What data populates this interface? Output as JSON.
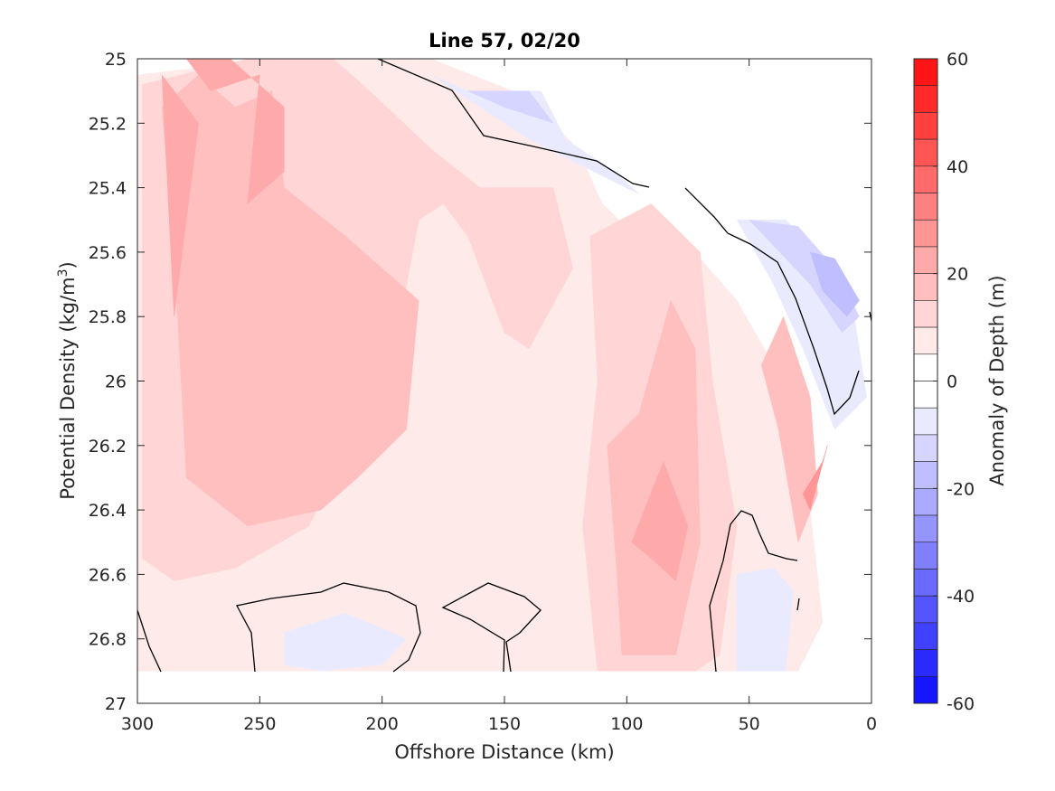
{
  "chart_data": {
    "type": "contour",
    "title": "Line 57, 02/20",
    "xlabel": "Offshore Distance (km)",
    "ylabel_main": "Potential Density (kg/m",
    "ylabel_sup": "3",
    "ylabel_close": ")",
    "colorbar_label": "Anomaly of Depth (m)",
    "xlim": [
      300,
      0
    ],
    "ylim": [
      27,
      25
    ],
    "x_ticks": [
      300,
      250,
      200,
      150,
      100,
      50,
      0
    ],
    "y_ticks": [
      25,
      25.2,
      25.4,
      25.6,
      25.8,
      26,
      26.2,
      26.4,
      26.6,
      26.8,
      27
    ],
    "colorbar_ticks": [
      60,
      40,
      20,
      0,
      -20,
      -40,
      -60
    ],
    "colorbar_range": [
      -60,
      60
    ],
    "colorbar_levels": 24,
    "grid": false,
    "colors": {
      "red_max": "#ff0000",
      "blue_max": "#0000ff",
      "zero": "#ffffff",
      "contour_line": "#000000"
    },
    "regions": [
      {
        "level": 5,
        "points": [
          [
            300,
            25.05
          ],
          [
            240,
            25.0
          ],
          [
            180,
            25.0
          ],
          [
            140,
            25.12
          ],
          [
            120,
            25.28
          ],
          [
            110,
            25.45
          ],
          [
            92,
            25.58
          ],
          [
            70,
            25.62
          ],
          [
            55,
            25.75
          ],
          [
            40,
            25.95
          ],
          [
            32,
            26.05
          ],
          [
            25,
            26.4
          ],
          [
            20,
            26.75
          ],
          [
            30,
            26.9
          ],
          [
            300,
            26.9
          ]
        ]
      },
      {
        "level": 10,
        "points": [
          [
            298,
            25.08
          ],
          [
            255,
            25.0
          ],
          [
            220,
            25.0
          ],
          [
            205,
            25.1
          ],
          [
            180,
            25.28
          ],
          [
            160,
            25.4
          ],
          [
            130,
            25.4
          ],
          [
            122,
            25.65
          ],
          [
            140,
            25.9
          ],
          [
            150,
            25.85
          ],
          [
            165,
            25.55
          ],
          [
            175,
            25.45
          ],
          [
            185,
            25.5
          ],
          [
            190,
            25.7
          ],
          [
            195,
            26.05
          ],
          [
            210,
            26.15
          ],
          [
            230,
            26.45
          ],
          [
            260,
            26.58
          ],
          [
            285,
            26.62
          ],
          [
            298,
            26.55
          ]
        ]
      },
      {
        "level": 10,
        "points": [
          [
            115,
            25.55
          ],
          [
            90,
            25.45
          ],
          [
            70,
            25.6
          ],
          [
            65,
            26.0
          ],
          [
            55,
            26.45
          ],
          [
            62,
            26.85
          ],
          [
            72,
            26.9
          ],
          [
            112,
            26.9
          ],
          [
            118,
            26.45
          ],
          [
            112,
            26.0
          ]
        ]
      },
      {
        "level": 15,
        "points": [
          [
            290,
            25.15
          ],
          [
            275,
            25.05
          ],
          [
            260,
            25.15
          ],
          [
            245,
            25.1
          ],
          [
            240,
            25.4
          ],
          [
            215,
            25.55
          ],
          [
            185,
            25.75
          ],
          [
            190,
            26.15
          ],
          [
            210,
            26.3
          ],
          [
            225,
            26.4
          ],
          [
            255,
            26.45
          ],
          [
            280,
            26.3
          ],
          [
            285,
            25.6
          ]
        ]
      },
      {
        "level": 15,
        "points": [
          [
            108,
            26.2
          ],
          [
            95,
            26.1
          ],
          [
            82,
            25.75
          ],
          [
            72,
            25.9
          ],
          [
            70,
            26.5
          ],
          [
            80,
            26.85
          ],
          [
            102,
            26.85
          ],
          [
            104,
            26.6
          ]
        ]
      },
      {
        "level": 15,
        "points": [
          [
            45,
            25.95
          ],
          [
            36,
            25.8
          ],
          [
            25,
            26.05
          ],
          [
            22,
            26.35
          ],
          [
            30,
            26.5
          ],
          [
            38,
            26.15
          ]
        ]
      },
      {
        "level": 20,
        "points": [
          [
            292,
            25.0
          ],
          [
            280,
            25.0
          ],
          [
            270,
            25.1
          ],
          [
            250,
            25.05
          ],
          [
            255,
            25.45
          ],
          [
            240,
            25.35
          ],
          [
            240,
            25.15
          ],
          [
            262,
            25.0
          ]
        ]
      },
      {
        "level": 20,
        "points": [
          [
            290,
            25.05
          ],
          [
            275,
            25.2
          ],
          [
            285,
            25.8
          ]
        ]
      },
      {
        "level": 20,
        "points": [
          [
            98,
            26.5
          ],
          [
            85,
            26.25
          ],
          [
            75,
            26.45
          ],
          [
            80,
            26.62
          ],
          [
            90,
            26.55
          ]
        ]
      },
      {
        "level": 25,
        "points": [
          [
            28,
            26.35
          ],
          [
            20,
            26.25
          ],
          [
            18,
            26.2
          ],
          [
            25,
            26.4
          ]
        ]
      },
      {
        "level": -5,
        "points": [
          [
            180,
            25.05
          ],
          [
            165,
            25.1
          ],
          [
            135,
            25.1
          ],
          [
            125,
            25.25
          ],
          [
            105,
            25.35
          ],
          [
            95,
            25.42
          ],
          [
            140,
            25.25
          ]
        ]
      },
      {
        "level": -5,
        "points": [
          [
            55,
            25.5
          ],
          [
            35,
            25.5
          ],
          [
            20,
            25.62
          ],
          [
            8,
            25.75
          ],
          [
            2,
            26.05
          ],
          [
            15,
            26.15
          ],
          [
            28,
            25.9
          ],
          [
            40,
            25.7
          ]
        ]
      },
      {
        "level": -5,
        "points": [
          [
            55,
            26.6
          ],
          [
            40,
            26.58
          ],
          [
            32,
            26.65
          ],
          [
            35,
            26.9
          ],
          [
            55,
            26.9
          ]
        ]
      },
      {
        "level": -5,
        "points": [
          [
            240,
            26.78
          ],
          [
            215,
            26.72
          ],
          [
            190,
            26.8
          ],
          [
            200,
            26.88
          ],
          [
            225,
            26.9
          ],
          [
            240,
            26.88
          ]
        ]
      },
      {
        "level": -10,
        "points": [
          [
            165,
            25.1
          ],
          [
            140,
            25.1
          ],
          [
            130,
            25.2
          ],
          [
            150,
            25.15
          ]
        ]
      },
      {
        "level": -10,
        "points": [
          [
            50,
            25.5
          ],
          [
            30,
            25.52
          ],
          [
            15,
            25.65
          ],
          [
            5,
            25.8
          ],
          [
            12,
            25.85
          ],
          [
            25,
            25.7
          ],
          [
            40,
            25.58
          ]
        ]
      },
      {
        "level": -15,
        "points": [
          [
            25,
            25.6
          ],
          [
            15,
            25.62
          ],
          [
            5,
            25.75
          ],
          [
            10,
            25.8
          ],
          [
            20,
            25.72
          ]
        ]
      }
    ]
  }
}
